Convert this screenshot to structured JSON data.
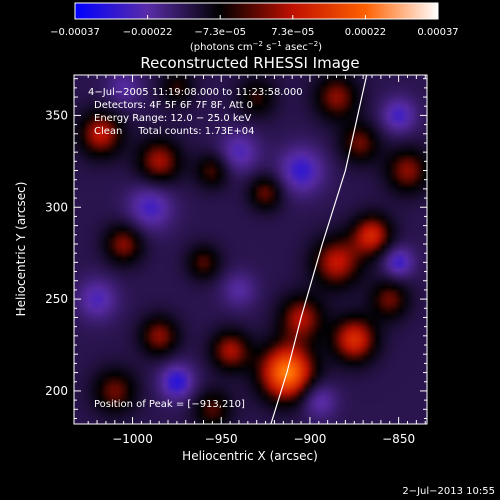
{
  "chart_data": {
    "type": "heatmap",
    "title": "Reconstructed RHESSI Image",
    "xlabel": "Heliocentric X (arcsec)",
    "ylabel": "Heliocentric Y (arcsec)",
    "xlim": [
      -1033,
      -834
    ],
    "ylim": [
      182,
      372
    ],
    "x_ticks": [
      -1000,
      -950,
      -900,
      -850
    ],
    "x_tick_labels": [
      "−1000",
      "−950",
      "−900",
      "−850"
    ],
    "y_ticks": [
      200,
      250,
      300,
      350
    ],
    "y_tick_labels": [
      "200",
      "250",
      "300",
      "350"
    ],
    "colorbar": {
      "range": [
        -0.00037,
        0.00037
      ],
      "tick_labels": [
        "−0.00037",
        "−0.00022",
        "−7.3e−05",
        "7.3e−05",
        "0.00022",
        "0.00037"
      ],
      "units_main": "(photons cm",
      "units_sup1": "−2",
      "units_mid1": " s",
      "units_sup2": "−1",
      "units_mid2": " asec",
      "units_sup3": "−2",
      "units_end": ")",
      "colors": [
        "#0000ff",
        "#5a2ca8",
        "#000000",
        "#c01000",
        "#ff6000",
        "#ffffff"
      ]
    },
    "annotations": {
      "time_range": "4−Jul−2005 11:19:08.000 to 11:23:58.000",
      "detectors": "Detectors: 4F 5F 6F 7F 8F, Att 0",
      "energy": "Energy Range: 12.0 − 25.0 keV",
      "method": "Clean     Total counts: 1.73E+04",
      "peak": "Position of Peak = [−913,210]"
    },
    "peak": [
      -913,
      210
    ],
    "blobs": [
      {
        "x": -913,
        "y": 210,
        "a": 1.0,
        "s": 11
      },
      {
        "x": -905,
        "y": 240,
        "a": 0.55,
        "s": 9
      },
      {
        "x": -885,
        "y": 270,
        "a": 0.6,
        "s": 10
      },
      {
        "x": -875,
        "y": 228,
        "a": 0.7,
        "s": 9
      },
      {
        "x": -865,
        "y": 285,
        "a": 0.65,
        "s": 8
      },
      {
        "x": -855,
        "y": 250,
        "a": 0.45,
        "s": 8
      },
      {
        "x": -845,
        "y": 320,
        "a": 0.5,
        "s": 9
      },
      {
        "x": -872,
        "y": 335,
        "a": 0.45,
        "s": 8
      },
      {
        "x": -885,
        "y": 360,
        "a": 0.5,
        "s": 9
      },
      {
        "x": -925,
        "y": 308,
        "a": 0.45,
        "s": 7
      },
      {
        "x": -955,
        "y": 320,
        "a": 0.4,
        "s": 7
      },
      {
        "x": -985,
        "y": 325,
        "a": 0.55,
        "s": 9
      },
      {
        "x": -1018,
        "y": 340,
        "a": 0.6,
        "s": 9
      },
      {
        "x": -1005,
        "y": 280,
        "a": 0.5,
        "s": 8
      },
      {
        "x": -960,
        "y": 270,
        "a": 0.4,
        "s": 7
      },
      {
        "x": -985,
        "y": 230,
        "a": 0.5,
        "s": 8
      },
      {
        "x": -945,
        "y": 222,
        "a": 0.55,
        "s": 8
      },
      {
        "x": -955,
        "y": 190,
        "a": 0.4,
        "s": 8
      },
      {
        "x": -1010,
        "y": 200,
        "a": 0.45,
        "s": 9
      },
      {
        "x": -975,
        "y": 365,
        "a": 0.35,
        "s": 7
      },
      {
        "x": -930,
        "y": 360,
        "a": 0.35,
        "s": 8
      },
      {
        "x": -905,
        "y": 320,
        "a": -0.5,
        "s": 9
      },
      {
        "x": -990,
        "y": 300,
        "a": -0.45,
        "s": 9
      },
      {
        "x": -940,
        "y": 330,
        "a": -0.4,
        "s": 8
      },
      {
        "x": -850,
        "y": 350,
        "a": -0.45,
        "s": 7
      },
      {
        "x": -850,
        "y": 270,
        "a": -0.5,
        "s": 6
      },
      {
        "x": -975,
        "y": 205,
        "a": -0.55,
        "s": 7
      },
      {
        "x": -1020,
        "y": 250,
        "a": -0.4,
        "s": 8
      },
      {
        "x": -895,
        "y": 195,
        "a": -0.4,
        "s": 7
      },
      {
        "x": -1005,
        "y": 365,
        "a": -0.3,
        "s": 7
      },
      {
        "x": -940,
        "y": 255,
        "a": -0.3,
        "s": 7
      }
    ],
    "limb": [
      [
        -922,
        182
      ],
      [
        -913,
        210
      ],
      [
        -905,
        240
      ],
      [
        -893,
        280
      ],
      [
        -880,
        320
      ],
      [
        -868,
        372
      ]
    ]
  },
  "footer": {
    "date": "2−Jul−2013 10:55"
  }
}
